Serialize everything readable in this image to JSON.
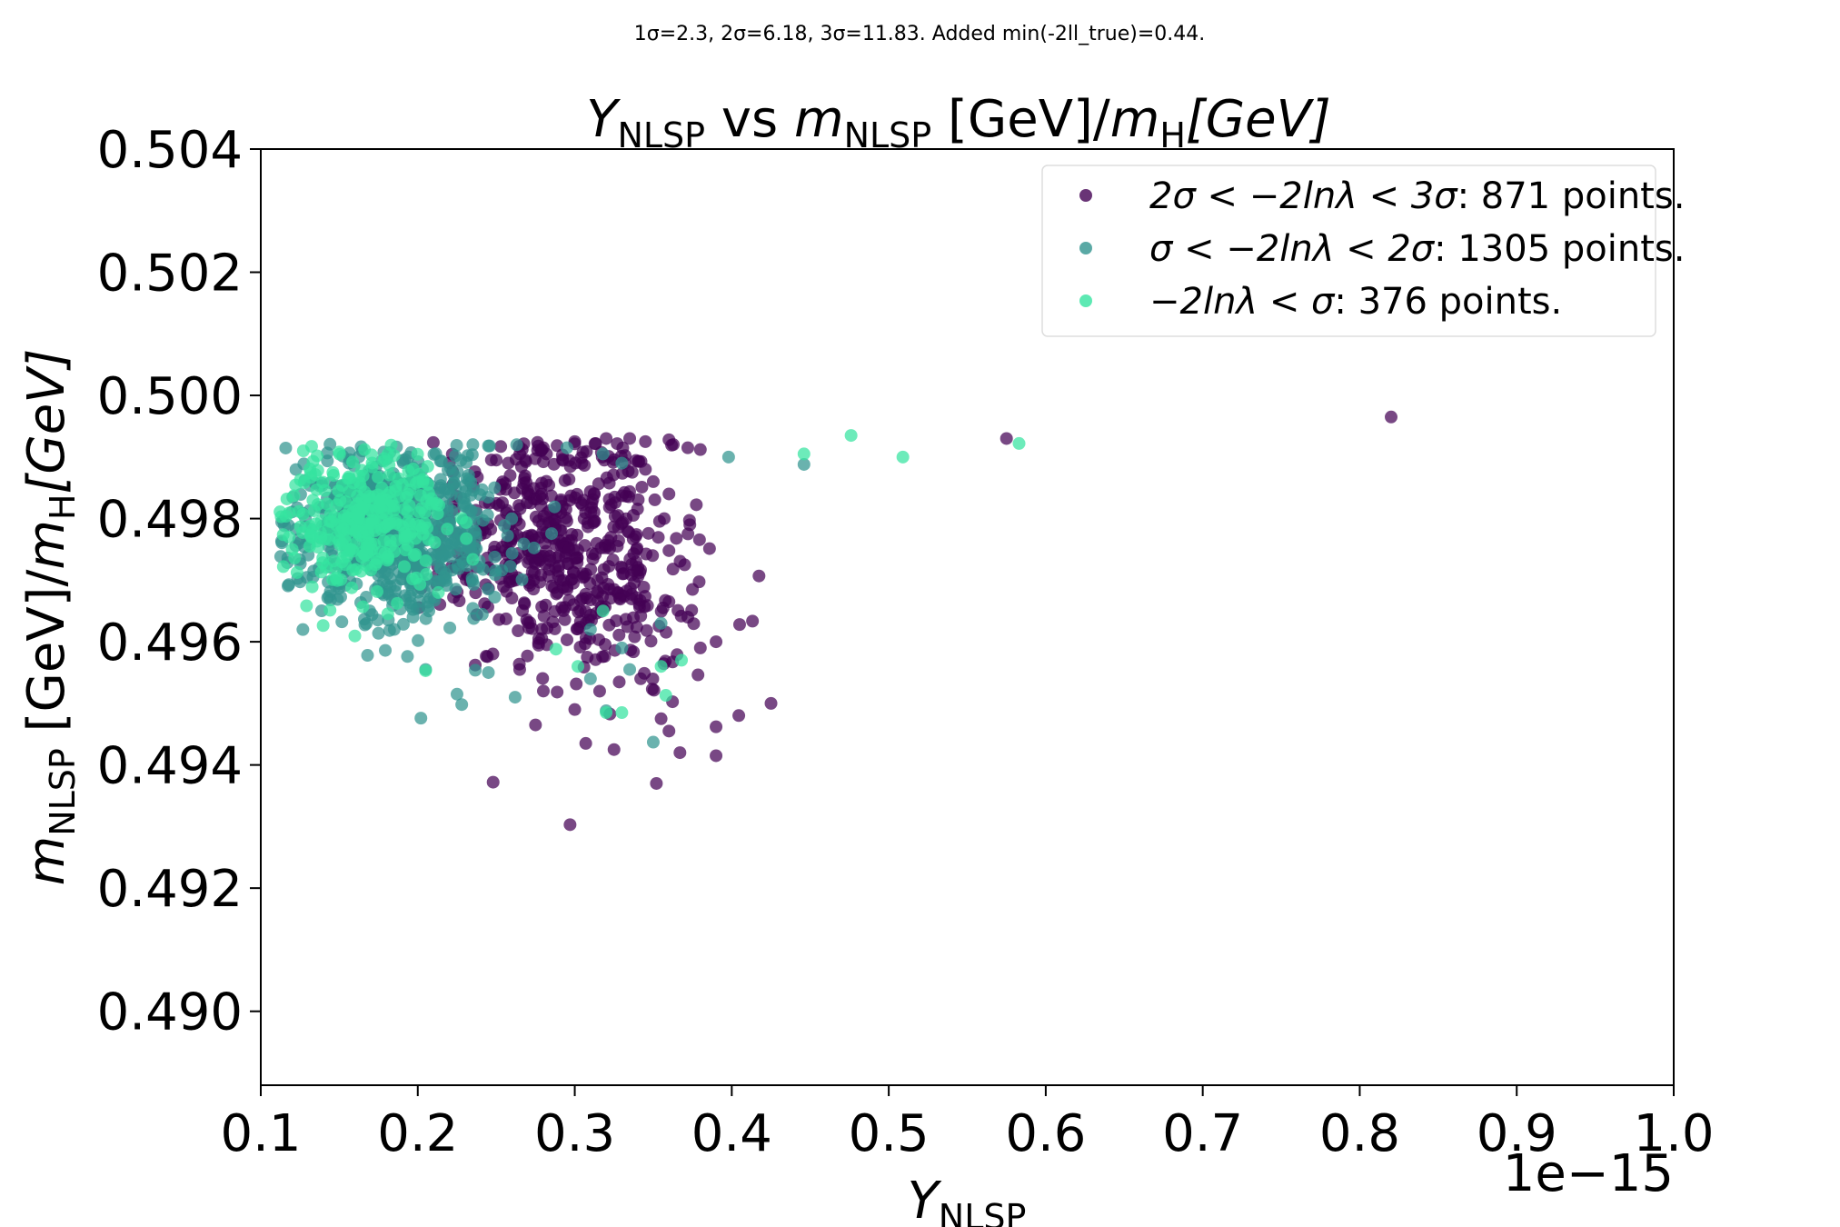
{
  "chart_data": {
    "type": "scatter",
    "suptitle": "1σ=2.3, 2σ=6.18, 3σ=11.83. Added min(-2ll_true)=0.44.",
    "title": {
      "var": "Y",
      "var_sub": "NLSP",
      "mid": " vs ",
      "var2": "m",
      "var2_sub": "NLSP",
      "unit": " [GeV]/",
      "var3": "m",
      "var3_sub": "H",
      "unit2": "[GeV]"
    },
    "xlabel": {
      "var": "Y",
      "sub": "NLSP"
    },
    "ylabel": {
      "var": "m",
      "sub": "NLSP",
      "rest": " [GeV]/",
      "var2": "m",
      "sub2": "H",
      "rest2": "[GeV]"
    },
    "x_offset_text": "1e−15",
    "xlim": [
      0.1,
      1.0
    ],
    "ylim": [
      0.4888,
      0.504
    ],
    "x_ticks": [
      0.1,
      0.2,
      0.3,
      0.4,
      0.5,
      0.6,
      0.7,
      0.8,
      0.9,
      1.0
    ],
    "x_tick_labels": [
      "0.1",
      "0.2",
      "0.3",
      "0.4",
      "0.5",
      "0.6",
      "0.7",
      "0.8",
      "0.9",
      "1.0"
    ],
    "y_ticks": [
      0.49,
      0.492,
      0.494,
      0.496,
      0.498,
      0.5,
      0.502,
      0.504
    ],
    "y_tick_labels": [
      "0.490",
      "0.492",
      "0.494",
      "0.496",
      "0.498",
      "0.500",
      "0.502",
      "0.504"
    ],
    "legend_position": "upper-right",
    "series": [
      {
        "name": "2σ < −2lnλ < 3σ: 871 points.",
        "legend_math": "2σ < −2lnλ < 3σ",
        "legend_count": ": 871 points.",
        "color": "#440154",
        "cluster": {
          "cx": 0.282,
          "cy": 0.49745,
          "sx": 0.052,
          "sy": 0.00125,
          "n": 560
        },
        "points": [
          [
            0.82,
            0.49965
          ],
          [
            0.575,
            0.4993
          ],
          [
            0.425,
            0.495
          ],
          [
            0.405,
            0.49628
          ],
          [
            0.39,
            0.49415
          ],
          [
            0.39,
            0.49462
          ],
          [
            0.352,
            0.4937
          ],
          [
            0.297,
            0.49303
          ],
          [
            0.248,
            0.49372
          ],
          [
            0.367,
            0.4942
          ],
          [
            0.325,
            0.49425
          ],
          [
            0.307,
            0.49435
          ],
          [
            0.275,
            0.49465
          ],
          [
            0.355,
            0.49475
          ],
          [
            0.36,
            0.49455
          ],
          [
            0.3,
            0.4949
          ],
          [
            0.28,
            0.4952
          ],
          [
            0.342,
            0.4954
          ],
          [
            0.38,
            0.4959
          ],
          [
            0.39,
            0.496
          ],
          [
            0.372,
            0.4964
          ],
          [
            0.36,
            0.49665
          ],
          [
            0.375,
            0.49685
          ],
          [
            0.37,
            0.49725
          ],
          [
            0.36,
            0.49748
          ],
          [
            0.357,
            0.498
          ],
          [
            0.36,
            0.4984
          ],
          [
            0.35,
            0.4986
          ],
          [
            0.345,
            0.4988
          ],
          [
            0.38,
            0.49912
          ],
          [
            0.372,
            0.49915
          ],
          [
            0.36,
            0.49928
          ],
          [
            0.345,
            0.49925
          ],
          [
            0.335,
            0.4993
          ],
          [
            0.32,
            0.4993
          ],
          [
            0.3,
            0.49925
          ],
          [
            0.28,
            0.49915
          ],
          [
            0.265,
            0.49905
          ],
          [
            0.25,
            0.49895
          ]
        ]
      },
      {
        "name": "σ < −2lnλ < 2σ: 1305 points.",
        "legend_math": "σ < −2lnλ < 2σ",
        "legend_count": ": 1305 points.",
        "color": "#31948f",
        "cluster": {
          "cx": 0.185,
          "cy": 0.4978,
          "sx": 0.04,
          "sy": 0.00085,
          "n": 780
        },
        "points": [
          [
            0.446,
            0.49888
          ],
          [
            0.398,
            0.499
          ],
          [
            0.35,
            0.49437
          ],
          [
            0.32,
            0.49488
          ],
          [
            0.262,
            0.4951
          ],
          [
            0.228,
            0.49498
          ],
          [
            0.202,
            0.49476
          ],
          [
            0.225,
            0.49515
          ],
          [
            0.205,
            0.49555
          ],
          [
            0.245,
            0.4955
          ],
          [
            0.31,
            0.4954
          ],
          [
            0.335,
            0.49555
          ],
          [
            0.33,
            0.4959
          ],
          [
            0.31,
            0.4962
          ],
          [
            0.355,
            0.4963
          ],
          [
            0.168,
            0.49578
          ],
          [
            0.185,
            0.4962
          ],
          [
            0.197,
            0.4964
          ],
          [
            0.33,
            0.4989
          ],
          [
            0.318,
            0.49905
          ],
          [
            0.295,
            0.49915
          ],
          [
            0.263,
            0.4992
          ],
          [
            0.245,
            0.49918
          ]
        ]
      },
      {
        "name": "−2lnλ < σ: 376 points.",
        "legend_math": "−2lnλ < σ",
        "legend_count": ": 376 points.",
        "color": "#35e3a0",
        "cluster": {
          "cx": 0.168,
          "cy": 0.4979,
          "sx": 0.032,
          "sy": 0.00068,
          "n": 300
        },
        "points": [
          [
            0.476,
            0.49935
          ],
          [
            0.509,
            0.499
          ],
          [
            0.583,
            0.49922
          ],
          [
            0.446,
            0.49905
          ],
          [
            0.33,
            0.49485
          ],
          [
            0.32,
            0.49485
          ],
          [
            0.358,
            0.49513
          ],
          [
            0.368,
            0.4957
          ],
          [
            0.355,
            0.4956
          ],
          [
            0.318,
            0.4965
          ],
          [
            0.302,
            0.4956
          ],
          [
            0.288,
            0.49588
          ],
          [
            0.205,
            0.49553
          ],
          [
            0.113,
            0.49803
          ],
          [
            0.12,
            0.4975
          ],
          [
            0.118,
            0.4977
          ]
        ]
      }
    ]
  }
}
